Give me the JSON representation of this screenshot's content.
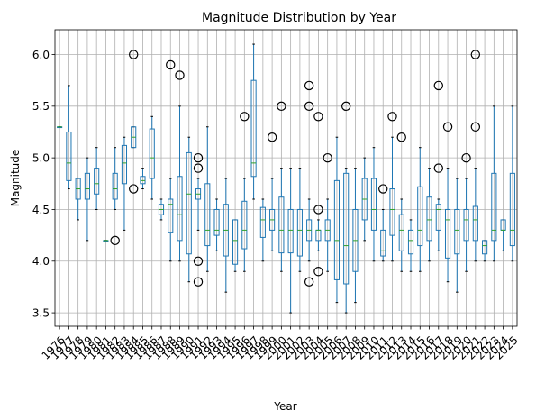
{
  "chart_data": {
    "type": "box",
    "title": "Magnitude Distribution by Year",
    "xlabel": "Year",
    "ylabel": "Magnitude",
    "ylim": [
      3.37,
      6.24
    ],
    "yticks": [
      "3.5",
      "4.0",
      "4.5",
      "5.0",
      "5.5",
      "6.0"
    ],
    "grid": true,
    "colors": {
      "box": "#1f77b4",
      "median": "#2ca02c",
      "grid": "#b0b0b0",
      "flier": "#000000"
    },
    "categories": [
      "1976",
      "1977",
      "1978",
      "1979",
      "1980",
      "1981",
      "1982",
      "1983",
      "1984",
      "1985",
      "1986",
      "1987",
      "1988",
      "1989",
      "1990",
      "1991",
      "1992",
      "1993",
      "1994",
      "1995",
      "1996",
      "1997",
      "1998",
      "1999",
      "2000",
      "2001",
      "2002",
      "2003",
      "2004",
      "2005",
      "2006",
      "2007",
      "2008",
      "2009",
      "2010",
      "2011",
      "2012",
      "2013",
      "2014",
      "2015",
      "2016",
      "2017",
      "2018",
      "2019",
      "2020",
      "2021",
      "2022",
      "2023",
      "2024",
      "2025"
    ],
    "boxes": [
      {
        "year": "1976",
        "whislo": 5.3,
        "q1": 5.3,
        "med": 5.3,
        "q3": 5.3,
        "whishi": 5.3,
        "fliers": []
      },
      {
        "year": "1977",
        "whislo": 4.7,
        "q1": 4.78,
        "med": 4.95,
        "q3": 5.25,
        "whishi": 5.7,
        "fliers": []
      },
      {
        "year": "1978",
        "whislo": 4.4,
        "q1": 4.6,
        "med": 4.7,
        "q3": 4.8,
        "whishi": 4.8,
        "fliers": []
      },
      {
        "year": "1979",
        "whislo": 4.2,
        "q1": 4.6,
        "med": 4.7,
        "q3": 4.85,
        "whishi": 5.0,
        "fliers": []
      },
      {
        "year": "1980",
        "whislo": 4.5,
        "q1": 4.65,
        "med": 4.75,
        "q3": 4.9,
        "whishi": 5.1,
        "fliers": []
      },
      {
        "year": "1981",
        "whislo": 4.2,
        "q1": 4.2,
        "med": 4.2,
        "q3": 4.2,
        "whishi": 4.2,
        "fliers": []
      },
      {
        "year": "1982",
        "whislo": 4.5,
        "q1": 4.6,
        "med": 4.7,
        "q3": 4.85,
        "whishi": 5.1,
        "fliers": [
          4.2
        ]
      },
      {
        "year": "1983",
        "whislo": 4.3,
        "q1": 4.75,
        "med": 4.95,
        "q3": 5.12,
        "whishi": 5.2,
        "fliers": []
      },
      {
        "year": "1984",
        "whislo": 5.1,
        "q1": 5.1,
        "med": 5.2,
        "q3": 5.3,
        "whishi": 5.3,
        "fliers": [
          6.0,
          4.7
        ]
      },
      {
        "year": "1985",
        "whislo": 4.7,
        "q1": 4.75,
        "med": 4.78,
        "q3": 4.82,
        "whishi": 4.9,
        "fliers": []
      },
      {
        "year": "1986",
        "whislo": 4.6,
        "q1": 4.8,
        "med": 5.0,
        "q3": 5.28,
        "whishi": 5.4,
        "fliers": []
      },
      {
        "year": "1987",
        "whislo": 4.4,
        "q1": 4.45,
        "med": 4.5,
        "q3": 4.55,
        "whishi": 4.6,
        "fliers": []
      },
      {
        "year": "1988",
        "whislo": 4.0,
        "q1": 4.28,
        "med": 4.55,
        "q3": 4.6,
        "whishi": 4.8,
        "fliers": [
          5.9
        ]
      },
      {
        "year": "1989",
        "whislo": 4.0,
        "q1": 4.2,
        "med": 4.45,
        "q3": 4.82,
        "whishi": 5.5,
        "fliers": [
          5.8
        ]
      },
      {
        "year": "1990",
        "whislo": 3.8,
        "q1": 4.07,
        "med": 4.65,
        "q3": 5.05,
        "whishi": 5.2,
        "fliers": []
      },
      {
        "year": "1991",
        "whislo": 4.3,
        "q1": 4.6,
        "med": 4.65,
        "q3": 4.7,
        "whishi": 4.8,
        "fliers": [
          5.0,
          4.9,
          4.0,
          3.8
        ]
      },
      {
        "year": "1992",
        "whislo": 3.9,
        "q1": 4.15,
        "med": 4.3,
        "q3": 4.75,
        "whishi": 5.3,
        "fliers": []
      },
      {
        "year": "1993",
        "whislo": 4.1,
        "q1": 4.25,
        "med": 4.3,
        "q3": 4.5,
        "whishi": 4.6,
        "fliers": []
      },
      {
        "year": "1994",
        "whislo": 3.7,
        "q1": 4.05,
        "med": 4.3,
        "q3": 4.55,
        "whishi": 4.8,
        "fliers": []
      },
      {
        "year": "1995",
        "whislo": 3.9,
        "q1": 3.97,
        "med": 4.2,
        "q3": 4.4,
        "whishi": 4.4,
        "fliers": []
      },
      {
        "year": "1996",
        "whislo": 3.9,
        "q1": 4.12,
        "med": 4.3,
        "q3": 4.58,
        "whishi": 4.8,
        "fliers": [
          5.4
        ]
      },
      {
        "year": "1997",
        "whislo": 4.6,
        "q1": 4.82,
        "med": 4.95,
        "q3": 5.75,
        "whishi": 6.1,
        "fliers": []
      },
      {
        "year": "1998",
        "whislo": 4.0,
        "q1": 4.23,
        "med": 4.4,
        "q3": 4.52,
        "whishi": 4.6,
        "fliers": []
      },
      {
        "year": "1999",
        "whislo": 4.1,
        "q1": 4.3,
        "med": 4.4,
        "q3": 4.5,
        "whishi": 4.8,
        "fliers": [
          5.2
        ]
      },
      {
        "year": "2000",
        "whislo": 3.9,
        "q1": 4.08,
        "med": 4.3,
        "q3": 4.62,
        "whishi": 4.9,
        "fliers": [
          5.5
        ]
      },
      {
        "year": "2001",
        "whislo": 3.5,
        "q1": 4.08,
        "med": 4.3,
        "q3": 4.5,
        "whishi": 4.9,
        "fliers": []
      },
      {
        "year": "2002",
        "whislo": 3.9,
        "q1": 4.05,
        "med": 4.3,
        "q3": 4.5,
        "whishi": 4.9,
        "fliers": []
      },
      {
        "year": "2003",
        "whislo": 4.0,
        "q1": 4.2,
        "med": 4.3,
        "q3": 4.4,
        "whishi": 4.6,
        "fliers": [
          5.7,
          5.5,
          3.8
        ]
      },
      {
        "year": "2004",
        "whislo": 4.1,
        "q1": 4.2,
        "med": 4.3,
        "q3": 4.3,
        "whishi": 4.4,
        "fliers": [
          5.4,
          4.5,
          3.9
        ]
      },
      {
        "year": "2005",
        "whislo": 3.9,
        "q1": 4.2,
        "med": 4.3,
        "q3": 4.4,
        "whishi": 4.6,
        "fliers": [
          5.0
        ]
      },
      {
        "year": "2006",
        "whislo": 3.6,
        "q1": 3.82,
        "med": 4.2,
        "q3": 4.78,
        "whishi": 5.2,
        "fliers": []
      },
      {
        "year": "2007",
        "whislo": 3.5,
        "q1": 3.78,
        "med": 4.15,
        "q3": 4.85,
        "whishi": 4.9,
        "fliers": [
          5.5
        ]
      },
      {
        "year": "2008",
        "whislo": 3.6,
        "q1": 3.9,
        "med": 4.2,
        "q3": 4.5,
        "whishi": 4.9,
        "fliers": []
      },
      {
        "year": "2009",
        "whislo": 4.2,
        "q1": 4.4,
        "med": 4.6,
        "q3": 4.8,
        "whishi": 5.0,
        "fliers": []
      },
      {
        "year": "2010",
        "whislo": 4.0,
        "q1": 4.3,
        "med": 4.5,
        "q3": 4.8,
        "whishi": 5.1,
        "fliers": []
      },
      {
        "year": "2011",
        "whislo": 4.0,
        "q1": 4.05,
        "med": 4.1,
        "q3": 4.3,
        "whishi": 4.5,
        "fliers": [
          4.7
        ]
      },
      {
        "year": "2012",
        "whislo": 4.0,
        "q1": 4.25,
        "med": 4.5,
        "q3": 4.7,
        "whishi": 5.2,
        "fliers": [
          5.4
        ]
      },
      {
        "year": "2013",
        "whislo": 3.9,
        "q1": 4.1,
        "med": 4.3,
        "q3": 4.45,
        "whishi": 4.6,
        "fliers": [
          5.2
        ]
      },
      {
        "year": "2014",
        "whislo": 3.9,
        "q1": 4.07,
        "med": 4.2,
        "q3": 4.3,
        "whishi": 4.4,
        "fliers": []
      },
      {
        "year": "2015",
        "whislo": 3.9,
        "q1": 4.15,
        "med": 4.3,
        "q3": 4.72,
        "whishi": 5.1,
        "fliers": []
      },
      {
        "year": "2016",
        "whislo": 4.0,
        "q1": 4.2,
        "med": 4.4,
        "q3": 4.62,
        "whishi": 4.9,
        "fliers": []
      },
      {
        "year": "2017",
        "whislo": 4.1,
        "q1": 4.3,
        "med": 4.5,
        "q3": 4.55,
        "whishi": 4.6,
        "fliers": [
          5.7,
          4.9
        ]
      },
      {
        "year": "2018",
        "whislo": 3.8,
        "q1": 4.03,
        "med": 4.4,
        "q3": 4.5,
        "whishi": 4.9,
        "fliers": [
          5.3
        ]
      },
      {
        "year": "2019",
        "whislo": 3.7,
        "q1": 4.07,
        "med": 4.3,
        "q3": 4.5,
        "whishi": 4.8,
        "fliers": []
      },
      {
        "year": "2020",
        "whislo": 3.9,
        "q1": 4.2,
        "med": 4.4,
        "q3": 4.5,
        "whishi": 4.8,
        "fliers": [
          5.0
        ]
      },
      {
        "year": "2021",
        "whislo": 4.0,
        "q1": 4.2,
        "med": 4.4,
        "q3": 4.53,
        "whishi": 4.9,
        "fliers": [
          6.0,
          5.3
        ]
      },
      {
        "year": "2022",
        "whislo": 4.0,
        "q1": 4.07,
        "med": 4.15,
        "q3": 4.2,
        "whishi": 4.2,
        "fliers": []
      },
      {
        "year": "2023",
        "whislo": 4.0,
        "q1": 4.2,
        "med": 4.3,
        "q3": 4.85,
        "whishi": 5.5,
        "fliers": []
      },
      {
        "year": "2024",
        "whislo": 4.1,
        "q1": 4.3,
        "med": 4.3,
        "q3": 4.4,
        "whishi": 4.4,
        "fliers": []
      },
      {
        "year": "2025",
        "whislo": 4.0,
        "q1": 4.15,
        "med": 4.3,
        "q3": 4.85,
        "whishi": 5.5,
        "fliers": []
      }
    ]
  }
}
